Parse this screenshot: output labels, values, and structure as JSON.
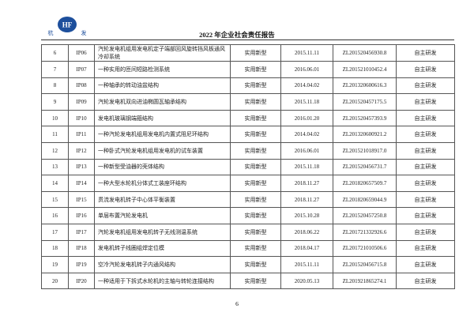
{
  "header": {
    "logo_left": "杭",
    "logo_mark": "HF",
    "logo_right": "发",
    "title": "2022 年企业社会责任报告"
  },
  "table": {
    "rows": [
      [
        "6",
        "IP06",
        "汽轮发电机组用发电机定子端部回风旋转挡风板通风冷却系统",
        "实用新型",
        "2015.11.11",
        "ZL201520456930.8",
        "自主研发"
      ],
      [
        "7",
        "IP07",
        "一种实用的匝间短路检测系统",
        "实用新型",
        "2016.06.01",
        "ZL201521010452.4",
        "自主研发"
      ],
      [
        "8",
        "IP08",
        "一种轴承的转动油盆结构",
        "实用新型",
        "2014.04.02",
        "ZL201320600616.3",
        "自主研发"
      ],
      [
        "9",
        "IP09",
        "汽轮发电机双向进油椭圆瓦轴承结构",
        "实用新型",
        "2015.11.18",
        "ZL201520457175.5",
        "自主研发"
      ],
      [
        "10",
        "IP10",
        "发电机玻璃钢端箍结构",
        "实用新型",
        "2016.01.20",
        "ZL201520457393.9",
        "自主研发"
      ],
      [
        "11",
        "IP11",
        "一种汽轮发电机组用发电机内置式阻尼环结构",
        "实用新型",
        "2014.04.02",
        "ZL201320600921.2",
        "自主研发"
      ],
      [
        "12",
        "IP12",
        "一种卧式汽轮发电机组用发电机的试车装置",
        "实用新型",
        "2016.06.01",
        "ZL201521018917.0",
        "自主研发"
      ],
      [
        "13",
        "IP13",
        "一种新型受油器的壳体结构",
        "实用新型",
        "2015.11.18",
        "ZL201520456731.7",
        "自主研发"
      ],
      [
        "14",
        "IP14",
        "一种大型水轮机分体式工装座环结构",
        "实用新型",
        "2018.11.27",
        "ZL201820657509.7",
        "自主研发"
      ],
      [
        "15",
        "IP15",
        "贯流发电机转子中心体平衡装置",
        "实用新型",
        "2018.11.27",
        "ZL201820659044.9",
        "自主研发"
      ],
      [
        "16",
        "IP16",
        "单层布置汽轮发电机",
        "实用新型",
        "2015.10.28",
        "ZL201520457250.8",
        "自主研发"
      ],
      [
        "17",
        "IP17",
        "汽轮发电机组用发电机转子无线测温系统",
        "实用新型",
        "2018.06.22",
        "ZL201721332926.6",
        "自主研发"
      ],
      [
        "18",
        "IP18",
        "发电机转子线圈组焊定位模",
        "实用新型",
        "2018.04.17",
        "ZL201721010506.6",
        "自主研发"
      ],
      [
        "19",
        "IP19",
        "空冷汽轮发电机转子内通风结构",
        "实用新型",
        "2015.11.11",
        "ZL201520456715.8",
        "自主研发"
      ],
      [
        "20",
        "IP20",
        "一种适用于下拆式水轮机的主轴与转轮连接结构",
        "实用新型",
        "2020.05.13",
        "ZL201921865274.1",
        "自主研发"
      ]
    ]
  },
  "footer": {
    "page_number": "6"
  }
}
